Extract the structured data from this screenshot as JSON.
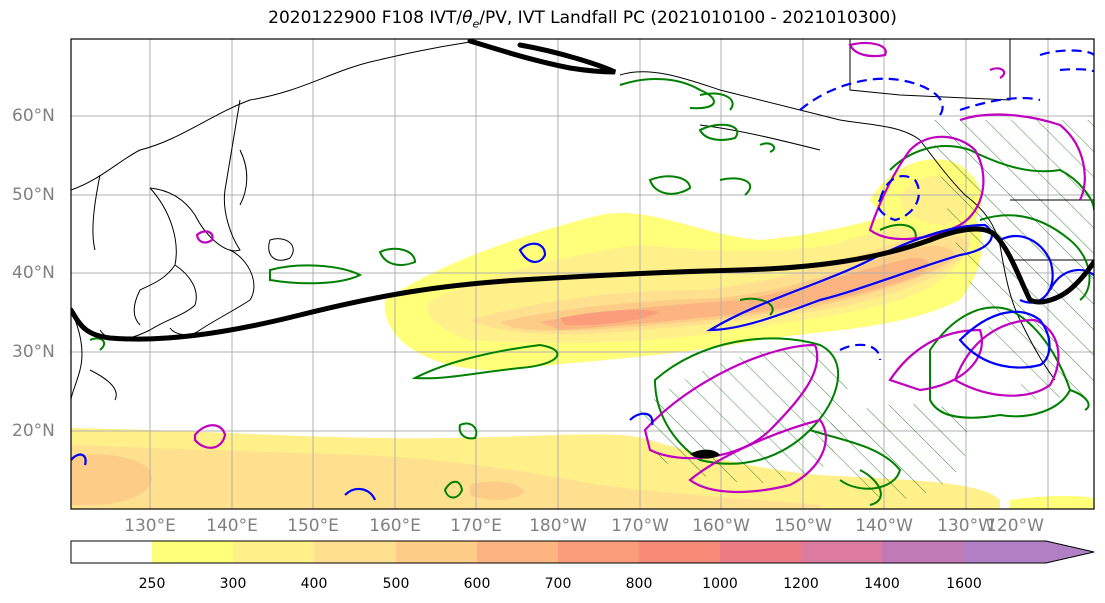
{
  "title": {
    "prefix": "2020122900 F108 IVT/",
    "theta": "θ",
    "sub": "e",
    "suffix": "/PV, IVT Landfall PC (2021010100 - 2021010300)"
  },
  "lat_labels": [
    "60°N",
    "50°N",
    "40°N",
    "30°N",
    "20°N"
  ],
  "lon_labels": [
    "130°E",
    "140°E",
    "150°E",
    "160°E",
    "170°E",
    "180°W",
    "170°W",
    "160°W",
    "150°W",
    "140°W",
    "130°W",
    "120°W"
  ],
  "colorbar": {
    "ticks": [
      "250",
      "300",
      "400",
      "500",
      "600",
      "700",
      "800",
      "1000",
      "1200",
      "1400",
      "1600"
    ],
    "colors": [
      "#ffffff",
      "#ffff7a",
      "#fff08a",
      "#fee08e",
      "#fdcd88",
      "#fcb580",
      "#fb9d7a",
      "#f98a78",
      "#ec7c84",
      "#dc7aa0",
      "#b07fc4"
    ]
  },
  "map": {
    "background": "#ffffff",
    "graticule_color": "#b0b0b0",
    "frame_color": "#000000",
    "legend_colors": {
      "theta_e": "#008000",
      "pv_pos": "#c000c0",
      "pv_neg": "#0000ff",
      "jet": "#000000"
    }
  }
}
